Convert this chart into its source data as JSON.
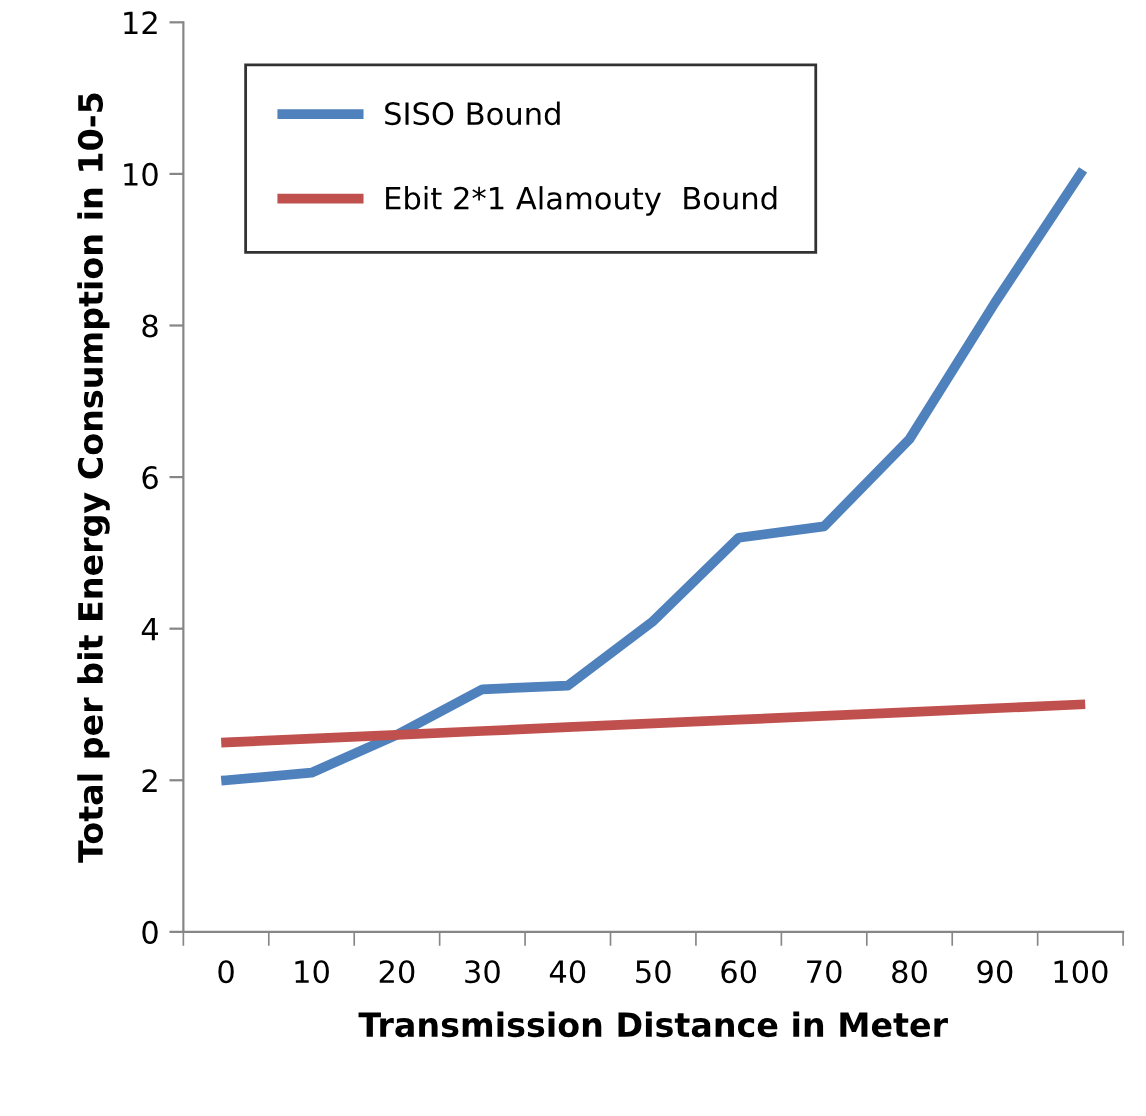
{
  "chart_data": {
    "type": "line",
    "xlabel": "Transmission Distance in Meter",
    "ylabel": "Total per bit Energy Consumption in 10-5",
    "categories": [
      "0",
      "10",
      "20",
      "30",
      "40",
      "50",
      "60",
      "70",
      "80",
      "90",
      "100"
    ],
    "series": [
      {
        "name": "SISO Bound",
        "color": "#4f81bd",
        "values": [
          2.0,
          2.1,
          2.6,
          3.2,
          3.25,
          4.1,
          5.2,
          5.35,
          6.5,
          8.3,
          10.0
        ]
      },
      {
        "name": "Ebit 2*1 Alamouty  Bound",
        "color": "#c0504d",
        "values": [
          2.5,
          2.55,
          2.6,
          2.65,
          2.7,
          2.75,
          2.8,
          2.85,
          2.9,
          2.95,
          3.0
        ]
      }
    ],
    "ylim": [
      0,
      12
    ],
    "yticks": [
      0,
      2,
      4,
      6,
      8,
      10,
      12
    ],
    "grid": false,
    "legend": "top left",
    "marker": "none",
    "line_style": "solid"
  }
}
